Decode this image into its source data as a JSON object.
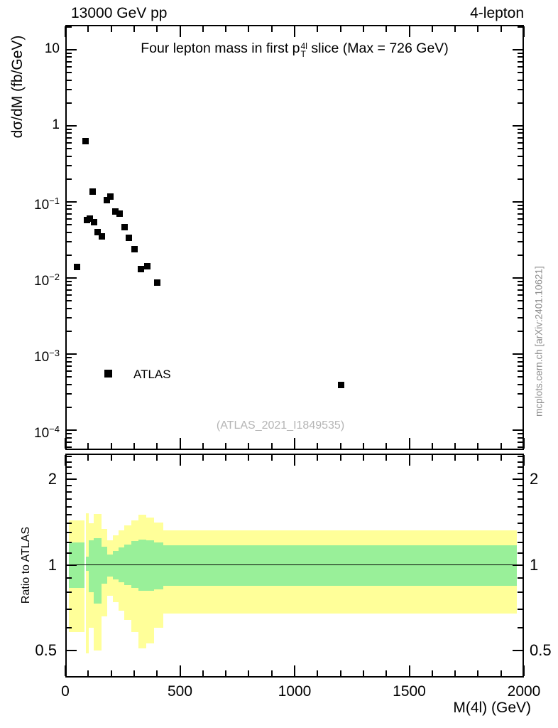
{
  "header": {
    "left": "13000 GeV pp",
    "right": "4-lepton"
  },
  "side_note": "mcplots.cern.ch [arXiv:2401.10621]",
  "chart_data": {
    "type": "scatter_with_ratio_bands",
    "title": {
      "pre": "Four lepton mass in first p",
      "sup": "4l",
      "sub": "T",
      "post": " slice (Max = 726 GeV)"
    },
    "x_axis": {
      "label": "M(4l) (GeV)",
      "min": 0,
      "max": 2000,
      "major_ticks": [
        0,
        500,
        1000,
        1500,
        2000
      ],
      "minor_step": 100
    },
    "top_panel": {
      "ylabel": "dσ/dM (fb/GeV)",
      "scale": "log",
      "ylim": [
        5.5e-05,
        21.2
      ],
      "ytick_labels": [
        {
          "v": 10,
          "t": "10",
          "e": ""
        },
        {
          "v": 1,
          "t": "1",
          "e": ""
        },
        {
          "v": 0.1,
          "t": "10",
          "e": "−1"
        },
        {
          "v": 0.01,
          "t": "10",
          "e": "−2"
        },
        {
          "v": 0.001,
          "t": "10",
          "e": "−3"
        },
        {
          "v": 0.0001,
          "t": "10",
          "e": "−4"
        }
      ],
      "legend_label": "ATLAS",
      "watermark": "(ATLAS_2021_I1849535)",
      "series": [
        {
          "name": "ATLAS",
          "marker": "square",
          "color": "#000000",
          "points": [
            [
              50,
              0.0139
            ],
            [
              89,
              0.63
            ],
            [
              95,
              0.058
            ],
            [
              107,
              0.061
            ],
            [
              120,
              0.138
            ],
            [
              124,
              0.054
            ],
            [
              140,
              0.04
            ],
            [
              159,
              0.035
            ],
            [
              180,
              0.105
            ],
            [
              198,
              0.117
            ],
            [
              218,
              0.075
            ],
            [
              236,
              0.07
            ],
            [
              259,
              0.047
            ],
            [
              276,
              0.034
            ],
            [
              303,
              0.024
            ],
            [
              329,
              0.0131
            ],
            [
              357,
              0.0144
            ],
            [
              401,
              0.0087
            ],
            [
              1203,
              0.00039
            ]
          ]
        }
      ]
    },
    "ratio_panel": {
      "ylabel": "Ratio to ATLAS",
      "scale": "log",
      "ylim": [
        0.402,
        2.46
      ],
      "ytick_labels": [
        {
          "v": 2,
          "t": "2"
        },
        {
          "v": 1,
          "t": "1"
        },
        {
          "v": 0.5,
          "t": "0.5"
        }
      ],
      "minor_ticks": [
        0.5,
        0.6,
        0.7,
        0.8,
        0.9,
        1,
        1.1,
        1.2,
        1.3,
        1.4,
        1.5,
        1.6,
        1.7,
        1.8,
        1.9,
        2,
        2.1,
        2.2,
        2.3,
        2.4
      ],
      "reference_line": 1,
      "band_colors": {
        "inner": "#99f099",
        "outer": "#ffff99"
      },
      "bands": [
        {
          "x": [
            15,
            85
          ],
          "outer": [
            0.58,
            1.43
          ],
          "inner": [
            0.83,
            1.2
          ]
        },
        {
          "x": [
            89,
            102
          ],
          "outer": [
            0.49,
            1.52
          ],
          "inner": [
            0.95,
            1.07
          ]
        },
        {
          "x": [
            102,
            124
          ],
          "outer": [
            0.6,
            1.4
          ],
          "inner": [
            0.8,
            1.22
          ]
        },
        {
          "x": [
            124,
            158
          ],
          "outer": [
            0.5,
            1.51
          ],
          "inner": [
            0.73,
            1.24
          ]
        },
        {
          "x": [
            158,
            182
          ],
          "outer": [
            0.66,
            1.34
          ],
          "inner": [
            0.86,
            1.16
          ]
        },
        {
          "x": [
            182,
            208
          ],
          "outer": [
            0.78,
            1.22
          ],
          "inner": [
            0.91,
            1.09
          ]
        },
        {
          "x": [
            208,
            232
          ],
          "outer": [
            0.74,
            1.27
          ],
          "inner": [
            0.89,
            1.12
          ]
        },
        {
          "x": [
            232,
            258
          ],
          "outer": [
            0.69,
            1.32
          ],
          "inner": [
            0.87,
            1.15
          ]
        },
        {
          "x": [
            258,
            288
          ],
          "outer": [
            0.64,
            1.38
          ],
          "inner": [
            0.85,
            1.18
          ]
        },
        {
          "x": [
            288,
            318
          ],
          "outer": [
            0.58,
            1.43
          ],
          "inner": [
            0.83,
            1.21
          ]
        },
        {
          "x": [
            318,
            352
          ],
          "outer": [
            0.51,
            1.5
          ],
          "inner": [
            0.81,
            1.23
          ]
        },
        {
          "x": [
            352,
            388
          ],
          "outer": [
            0.53,
            1.47
          ],
          "inner": [
            0.81,
            1.22
          ]
        },
        {
          "x": [
            388,
            427
          ],
          "outer": [
            0.6,
            1.41
          ],
          "inner": [
            0.82,
            1.2
          ]
        },
        {
          "x": [
            427,
            1970
          ],
          "outer": [
            0.675,
            1.32
          ],
          "inner": [
            0.845,
            1.17
          ]
        }
      ]
    }
  }
}
